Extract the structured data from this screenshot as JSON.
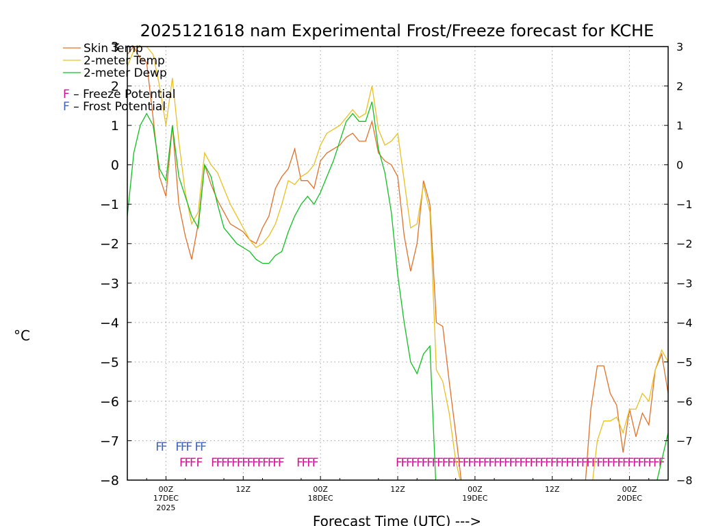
{
  "chart_data": {
    "type": "line",
    "title": "2025121618 nam Experimental Frost/Freeze forecast for KCHE",
    "xlabel": "Forecast Time (UTC) --->",
    "ylabel": "°C",
    "ylim": [
      -8,
      3
    ],
    "y_ticks": [
      -8,
      -7,
      -6,
      -5,
      -4,
      -3,
      -2,
      -1,
      0,
      1,
      2,
      3
    ],
    "grid": true,
    "legend_position": "top-left",
    "x_units": "forecast hours from 2025121618",
    "xlim": [
      0,
      84
    ],
    "x_ticks": [
      {
        "x": 6,
        "label": "00Z",
        "sub": "17DEC",
        "sub2": "2025"
      },
      {
        "x": 18,
        "label": "12Z",
        "sub": "",
        "sub2": ""
      },
      {
        "x": 30,
        "label": "00Z",
        "sub": "18DEC",
        "sub2": ""
      },
      {
        "x": 42,
        "label": "12Z",
        "sub": "",
        "sub2": ""
      },
      {
        "x": 54,
        "label": "00Z",
        "sub": "19DEC",
        "sub2": ""
      },
      {
        "x": 66,
        "label": "12Z",
        "sub": "",
        "sub2": ""
      },
      {
        "x": 78,
        "label": "00Z",
        "sub": "20DEC",
        "sub2": ""
      }
    ],
    "x": [
      0,
      1,
      2,
      3,
      4,
      5,
      6,
      7,
      8,
      9,
      10,
      11,
      12,
      13,
      14,
      15,
      16,
      17,
      18,
      19,
      20,
      21,
      22,
      23,
      24,
      25,
      26,
      27,
      28,
      29,
      30,
      31,
      32,
      33,
      34,
      35,
      36,
      37,
      38,
      39,
      40,
      41,
      42,
      43,
      44,
      45,
      46,
      47,
      48,
      49,
      50,
      51,
      52,
      53,
      54,
      55,
      56,
      57,
      58,
      59,
      60,
      61,
      62,
      63,
      64,
      65,
      66,
      67,
      68,
      69,
      70,
      71,
      72,
      73,
      74,
      75,
      76,
      77,
      78,
      79,
      80,
      81,
      82,
      83,
      84
    ],
    "series": [
      {
        "name": "Skin Temp",
        "color": "#e07028",
        "values": [
          2.8,
          3.0,
          2.7,
          2.6,
          1.2,
          -0.3,
          -0.8,
          1.0,
          -1.0,
          -1.8,
          -2.4,
          -1.5,
          0.0,
          -0.5,
          -0.9,
          -1.2,
          -1.5,
          -1.6,
          -1.7,
          -1.9,
          -2.0,
          -1.6,
          -1.3,
          -0.6,
          -0.3,
          -0.1,
          0.4,
          -0.4,
          -0.4,
          -0.6,
          0.1,
          0.3,
          0.4,
          0.5,
          0.7,
          0.8,
          0.6,
          0.6,
          1.1,
          0.3,
          0.1,
          0.0,
          -0.3,
          -1.8,
          -2.7,
          -2.0,
          -0.4,
          -1.0,
          -4.0,
          -4.1,
          -5.5,
          -6.8,
          -8.2,
          -8.4,
          -8.4,
          -8.4,
          -8.4,
          -8.4,
          -8.4,
          -8.4,
          -8.4,
          -8.4,
          -8.4,
          -8.4,
          -8.4,
          -8.4,
          -8.4,
          -8.4,
          -8.4,
          -8.4,
          -8.4,
          -8.4,
          -6.2,
          -5.1,
          -5.1,
          -5.8,
          -6.1,
          -7.3,
          -6.2,
          -6.9,
          -6.3,
          -6.6,
          -5.2,
          -4.8,
          -5.8
        ]
      },
      {
        "name": "2-meter Temp",
        "color": "#e8c020",
        "values": [
          2.5,
          2.9,
          3.0,
          3.0,
          2.8,
          2.0,
          1.0,
          2.2,
          0.6,
          -0.7,
          -1.5,
          -1.2,
          0.3,
          0.0,
          -0.2,
          -0.6,
          -1.0,
          -1.3,
          -1.6,
          -1.9,
          -2.1,
          -2.0,
          -1.8,
          -1.5,
          -1.0,
          -0.4,
          -0.5,
          -0.3,
          -0.2,
          0.0,
          0.5,
          0.8,
          0.9,
          1.0,
          1.2,
          1.4,
          1.2,
          1.3,
          2.0,
          0.9,
          0.5,
          0.6,
          0.8,
          -0.4,
          -1.6,
          -1.5,
          -0.5,
          -1.2,
          -5.2,
          -5.5,
          -6.3,
          -7.5,
          -8.2,
          -8.4,
          -8.4,
          -8.4,
          -8.4,
          -8.4,
          -8.4,
          -8.4,
          -8.4,
          -8.4,
          -8.4,
          -8.4,
          -8.4,
          -8.4,
          -8.4,
          -8.4,
          -8.4,
          -8.4,
          -8.4,
          -8.4,
          -8.4,
          -7.0,
          -6.5,
          -6.5,
          -6.4,
          -6.8,
          -6.2,
          -6.2,
          -5.8,
          -6.0,
          -5.2,
          -4.7,
          -5.0
        ]
      },
      {
        "name": "2-meter Dewp",
        "color": "#10c020",
        "values": [
          -1.3,
          0.3,
          1.0,
          1.3,
          1.0,
          -0.1,
          -0.4,
          1.0,
          -0.3,
          -0.8,
          -1.3,
          -1.6,
          0.0,
          -0.3,
          -1.0,
          -1.6,
          -1.8,
          -2.0,
          -2.1,
          -2.2,
          -2.4,
          -2.5,
          -2.5,
          -2.3,
          -2.2,
          -1.7,
          -1.3,
          -1.0,
          -0.8,
          -1.0,
          -0.7,
          -0.3,
          0.1,
          0.6,
          1.1,
          1.3,
          1.1,
          1.1,
          1.6,
          0.4,
          -0.2,
          -1.2,
          -2.8,
          -4.0,
          -5.0,
          -5.3,
          -4.8,
          -4.6,
          -8.4,
          -8.4,
          -8.4,
          -8.4,
          -8.4,
          -8.4,
          -8.4,
          -8.4,
          -8.4,
          -8.4,
          -8.4,
          -8.4,
          -8.4,
          -8.4,
          -8.4,
          -8.4,
          -8.4,
          -8.4,
          -8.4,
          -8.4,
          -8.4,
          -8.4,
          -8.4,
          -8.4,
          -8.4,
          -8.4,
          -8.4,
          -8.4,
          -8.4,
          -8.4,
          -8.4,
          -8.4,
          -8.4,
          -8.4,
          -8.2,
          -7.5,
          -6.8
        ]
      }
    ],
    "potential_legend": [
      {
        "symbol": "F",
        "text": " – Freeze Potential",
        "color": "#d01090"
      },
      {
        "symbol": "F",
        "text": " – Frost Potential",
        "color": "#4060c0"
      }
    ],
    "frost_potential": {
      "color": "#4060c0",
      "y": -7.15,
      "x": [
        4.9,
        5.7,
        8.0,
        8.8,
        9.6,
        11.0,
        11.8
      ]
    },
    "freeze_potential": {
      "color": "#d01090",
      "y": -7.55,
      "x": [
        8.6,
        9.4,
        10.2,
        11.2,
        13.5,
        14.3,
        15.1,
        15.9,
        16.7,
        17.5,
        18.3,
        19.1,
        19.9,
        20.7,
        21.5,
        22.3,
        23.1,
        23.9,
        26.8,
        27.6,
        28.4,
        29.2,
        42.2,
        43.0,
        43.8,
        44.6,
        45.4,
        46.2,
        47.0,
        47.8,
        48.6,
        49.4,
        50.2,
        51.0,
        51.8,
        52.6,
        53.4,
        54.2,
        55.0,
        55.8,
        56.6,
        57.4,
        58.2,
        59.0,
        59.8,
        60.6,
        61.4,
        62.2,
        63.0,
        63.8,
        64.6,
        65.4,
        66.2,
        67.0,
        67.8,
        68.6,
        69.4,
        70.2,
        71.0,
        71.8,
        72.6,
        73.4,
        74.2,
        75.0,
        75.8,
        76.6,
        77.4,
        78.2,
        79.0,
        79.8,
        80.6,
        81.4,
        82.2,
        83.0
      ]
    }
  }
}
